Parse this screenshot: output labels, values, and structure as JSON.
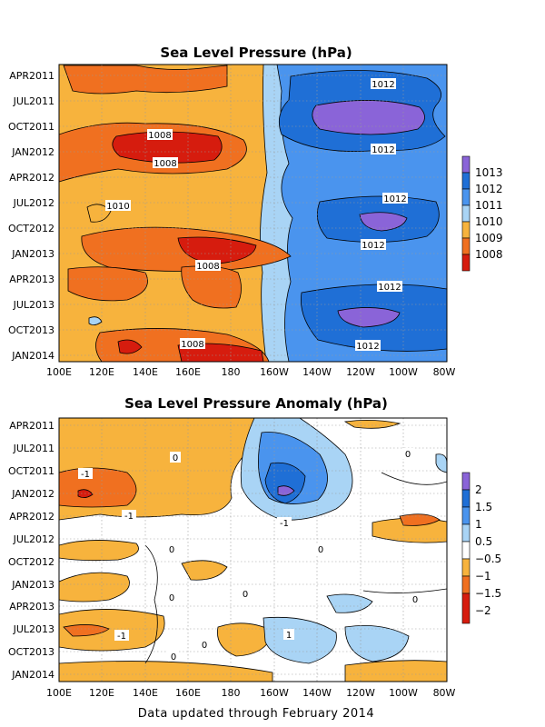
{
  "footer": "Data updated through February 2014",
  "chart_data": [
    {
      "type": "heatmap",
      "title": "Sea Level Pressure (hPa)",
      "x_ticks": [
        "100E",
        "120E",
        "140E",
        "160E",
        "180",
        "160W",
        "140W",
        "120W",
        "100W",
        "80W"
      ],
      "y_ticks": [
        "APR2011",
        "JUL2011",
        "OCT2011",
        "JAN2012",
        "APR2012",
        "JUL2012",
        "OCT2012",
        "JAN2013",
        "APR2013",
        "JUL2013",
        "OCT2013",
        "JAN2014"
      ],
      "colorbar": {
        "labels": [
          "1013",
          "1012",
          "1011",
          "1010",
          "1009",
          "1008"
        ],
        "colors": [
          "#8a64d8",
          "#1f6fd6",
          "#4a94ee",
          "#a9d4f5",
          "#f7b33d",
          "#f07020",
          "#d61c0e"
        ]
      },
      "contour_labels": [
        "1012",
        "1008",
        "1008",
        "1012",
        "1010",
        "1012",
        "1012",
        "1008",
        "1012",
        "1008",
        "1012"
      ],
      "grid": true
    },
    {
      "type": "heatmap",
      "title": "Sea Level Pressure Anomaly (hPa)",
      "x_ticks": [
        "100E",
        "120E",
        "140E",
        "160E",
        "180",
        "160W",
        "140W",
        "120W",
        "100W",
        "80W"
      ],
      "y_ticks": [
        "APR2011",
        "JUL2011",
        "OCT2011",
        "JAN2012",
        "APR2012",
        "JUL2012",
        "OCT2012",
        "JAN2013",
        "APR2013",
        "JUL2013",
        "OCT2013",
        "JAN2014"
      ],
      "colorbar": {
        "labels": [
          "2",
          "1.5",
          "1",
          "0.5",
          "−0.5",
          "−1",
          "−1.5",
          "−2"
        ],
        "colors": [
          "#8a64d8",
          "#1f6fd6",
          "#4a94ee",
          "#a9d4f5",
          "#ffffff",
          "#f7b33d",
          "#f07020",
          "#d61c0e"
        ]
      },
      "contour_labels": [
        "-1",
        "-1",
        "0",
        "-1",
        "0",
        "0",
        "0",
        "0",
        "0",
        "0",
        "1",
        "-1",
        "0",
        "0"
      ],
      "grid": true
    }
  ]
}
